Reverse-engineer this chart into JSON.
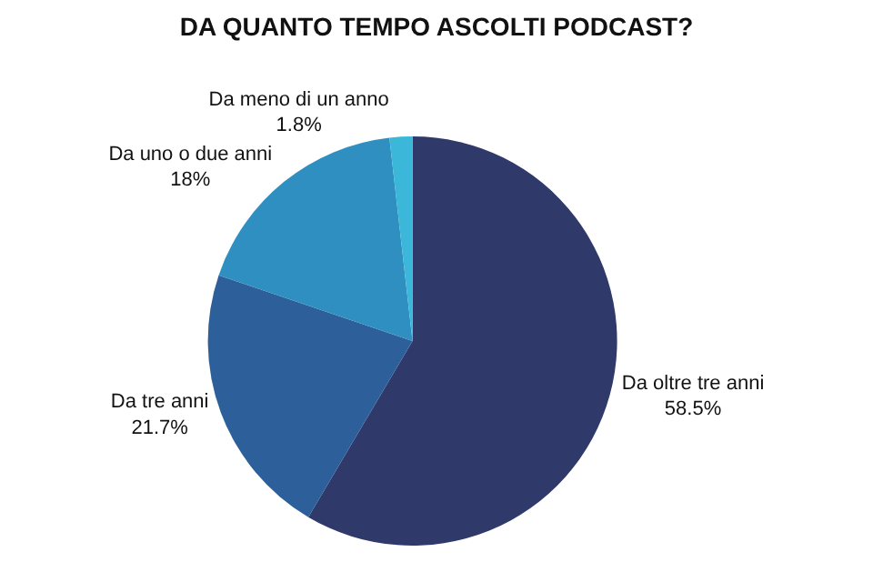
{
  "chart_data": {
    "type": "pie",
    "title": "DA QUANTO TEMPO ASCOLTI PODCAST?",
    "categories": [
      "Da oltre tre anni",
      "Da tre anni",
      "Da uno o due anni",
      "Da meno di un anno"
    ],
    "values": [
      58.5,
      21.7,
      18,
      1.8
    ],
    "value_labels": [
      "58.5%",
      "21.7%",
      "18%",
      "1.8%"
    ],
    "colors": [
      "#2f3a6b",
      "#2d5f9a",
      "#2e8fc0",
      "#3ab7d9"
    ],
    "legend": false
  }
}
